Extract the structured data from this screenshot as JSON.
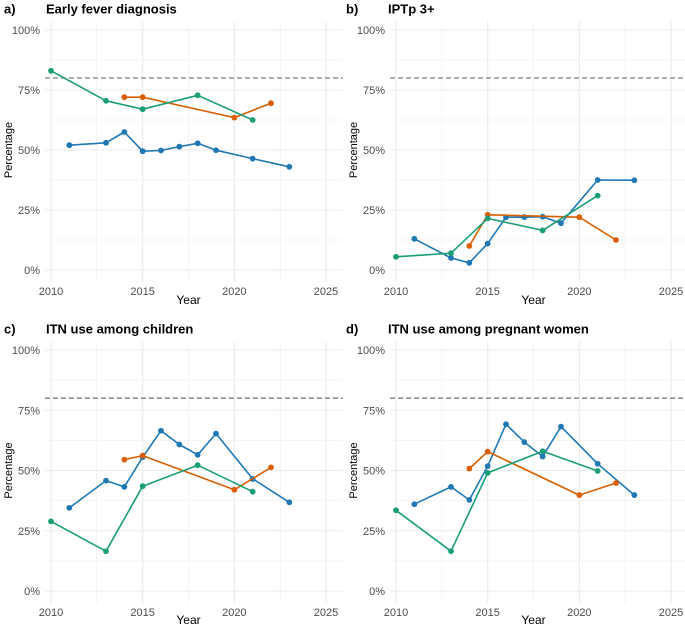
{
  "figure": {
    "x_label": "Year",
    "y_label": "Percentage",
    "target_line": 80,
    "colors": {
      "blue": "#1f78b4",
      "orange": "#d95f02",
      "green": "#1b9e77",
      "target": "#7f7f7f",
      "grid": "#ebebeb",
      "text": "#4d4d4d"
    }
  },
  "chart_data": [
    {
      "type": "line",
      "panel": "a)",
      "title": "Early fever diagnosis",
      "xlabel": "Year",
      "ylabel": "Percentage",
      "xlim": [
        2010,
        2025
      ],
      "ylim": [
        0,
        100
      ],
      "x_ticks": [
        2010,
        2015,
        2020,
        2025
      ],
      "y_ticks": [
        "0%",
        "25%",
        "50%",
        "75%",
        "100%"
      ],
      "target": 80,
      "series": [
        {
          "color": "blue",
          "x": [
            2011,
            2013,
            2014,
            2015,
            2016,
            2017,
            2018,
            2019,
            2021,
            2023
          ],
          "values": [
            52,
            53,
            57.5,
            49.5,
            49.8,
            51.4,
            52.8,
            49.9,
            46.4,
            43
          ]
        },
        {
          "color": "orange",
          "x": [
            2014,
            2015,
            2020,
            2022
          ],
          "values": [
            72,
            72,
            63.5,
            69.5
          ]
        },
        {
          "color": "green",
          "x": [
            2010,
            2013,
            2015,
            2018,
            2021
          ],
          "values": [
            83,
            70.5,
            67,
            72.8,
            62.5
          ]
        }
      ]
    },
    {
      "type": "line",
      "panel": "b)",
      "title": "IPTp 3+",
      "xlabel": "Year",
      "ylabel": "Percentage",
      "xlim": [
        2010,
        2025
      ],
      "ylim": [
        0,
        100
      ],
      "x_ticks": [
        2010,
        2015,
        2020,
        2025
      ],
      "y_ticks": [
        "0%",
        "25%",
        "50%",
        "75%",
        "100%"
      ],
      "target": 80,
      "series": [
        {
          "color": "blue",
          "x": [
            2011,
            2013,
            2014,
            2015,
            2016,
            2017,
            2018,
            2019,
            2021,
            2023
          ],
          "values": [
            13,
            5,
            3,
            11,
            22,
            22,
            22.2,
            19.5,
            37.5,
            37.4
          ]
        },
        {
          "color": "orange",
          "x": [
            2014,
            2015,
            2020,
            2022
          ],
          "values": [
            10,
            23,
            22,
            12.5
          ]
        },
        {
          "color": "green",
          "x": [
            2010,
            2013,
            2015,
            2018,
            2021
          ],
          "values": [
            5.5,
            7,
            21.5,
            16.5,
            31
          ]
        }
      ]
    },
    {
      "type": "line",
      "panel": "c)",
      "title": "ITN use among children",
      "xlabel": "Year",
      "ylabel": "Percentage",
      "xlim": [
        2010,
        2025
      ],
      "ylim": [
        0,
        100
      ],
      "x_ticks": [
        2010,
        2015,
        2020,
        2025
      ],
      "y_ticks": [
        "0%",
        "25%",
        "50%",
        "75%",
        "100%"
      ],
      "target": 80,
      "series": [
        {
          "color": "blue",
          "x": [
            2011,
            2013,
            2014,
            2015,
            2016,
            2017,
            2018,
            2019,
            2021,
            2023
          ],
          "values": [
            34.5,
            45.8,
            43.2,
            55.5,
            66.5,
            60.8,
            56.5,
            65.3,
            46.5,
            36.8
          ]
        },
        {
          "color": "orange",
          "x": [
            2014,
            2015,
            2020,
            2022
          ],
          "values": [
            54.5,
            56.2,
            42,
            51.3
          ]
        },
        {
          "color": "green",
          "x": [
            2010,
            2013,
            2015,
            2018,
            2021
          ],
          "values": [
            28.9,
            16.5,
            43.5,
            52.2,
            41.2
          ]
        }
      ]
    },
    {
      "type": "line",
      "panel": "d)",
      "title": "ITN use among pregnant women",
      "xlabel": "Year",
      "ylabel": "Percentage",
      "xlim": [
        2010,
        2025
      ],
      "ylim": [
        0,
        100
      ],
      "x_ticks": [
        2010,
        2015,
        2020,
        2025
      ],
      "y_ticks": [
        "0%",
        "25%",
        "50%",
        "75%",
        "100%"
      ],
      "target": 80,
      "series": [
        {
          "color": "blue",
          "x": [
            2011,
            2013,
            2014,
            2015,
            2016,
            2017,
            2018,
            2019,
            2021,
            2023
          ],
          "values": [
            36,
            43.2,
            37.8,
            51.8,
            69.2,
            61.8,
            55.8,
            68.2,
            52.8,
            39.8
          ]
        },
        {
          "color": "orange",
          "x": [
            2014,
            2015,
            2020,
            2022
          ],
          "values": [
            50.8,
            57.8,
            39.8,
            44.8
          ]
        },
        {
          "color": "green",
          "x": [
            2010,
            2013,
            2015,
            2018,
            2021
          ],
          "values": [
            33.5,
            16.5,
            49,
            58,
            49.8
          ]
        }
      ]
    }
  ]
}
